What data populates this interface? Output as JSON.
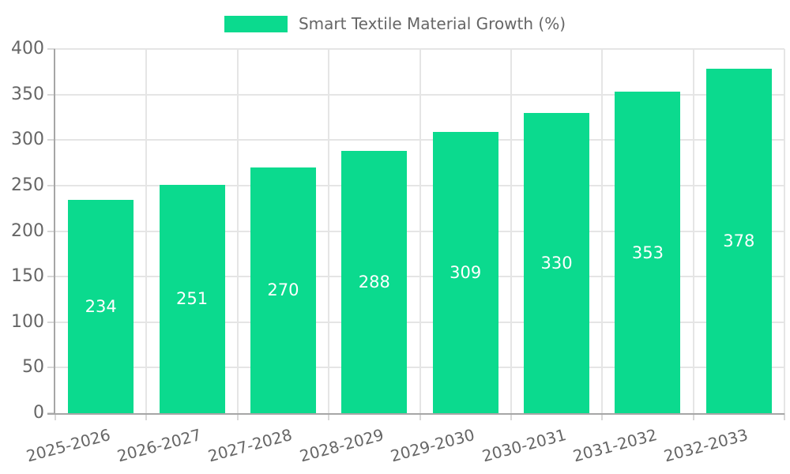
{
  "legend": {
    "label": "Smart Textile Material Growth (%)"
  },
  "chart_data": {
    "type": "bar",
    "title": "Smart Textile Material Growth (%)",
    "categories": [
      "2025-2026",
      "2026-2027",
      "2027-2028",
      "2028-2029",
      "2029-2030",
      "2030-2031",
      "2031-2032",
      "2032-2033"
    ],
    "values": [
      234,
      251,
      270,
      288,
      309,
      330,
      353,
      378
    ],
    "xlabel": "",
    "ylabel": "",
    "ylim": [
      0,
      400
    ],
    "ytick_step": 50,
    "yticks": [
      0,
      50,
      100,
      150,
      200,
      250,
      300,
      350,
      400
    ],
    "legend_position": "top",
    "grid": true,
    "value_labels": "inside-center",
    "colors": {
      "bar": "#0bda8e",
      "value_label": "#ffffff",
      "axis_line": "#a6a6a6",
      "grid_line": "#e5e5e5",
      "tick_mark": "#d8d8d8",
      "tick_text": "#666666",
      "background": "#ffffff"
    }
  }
}
